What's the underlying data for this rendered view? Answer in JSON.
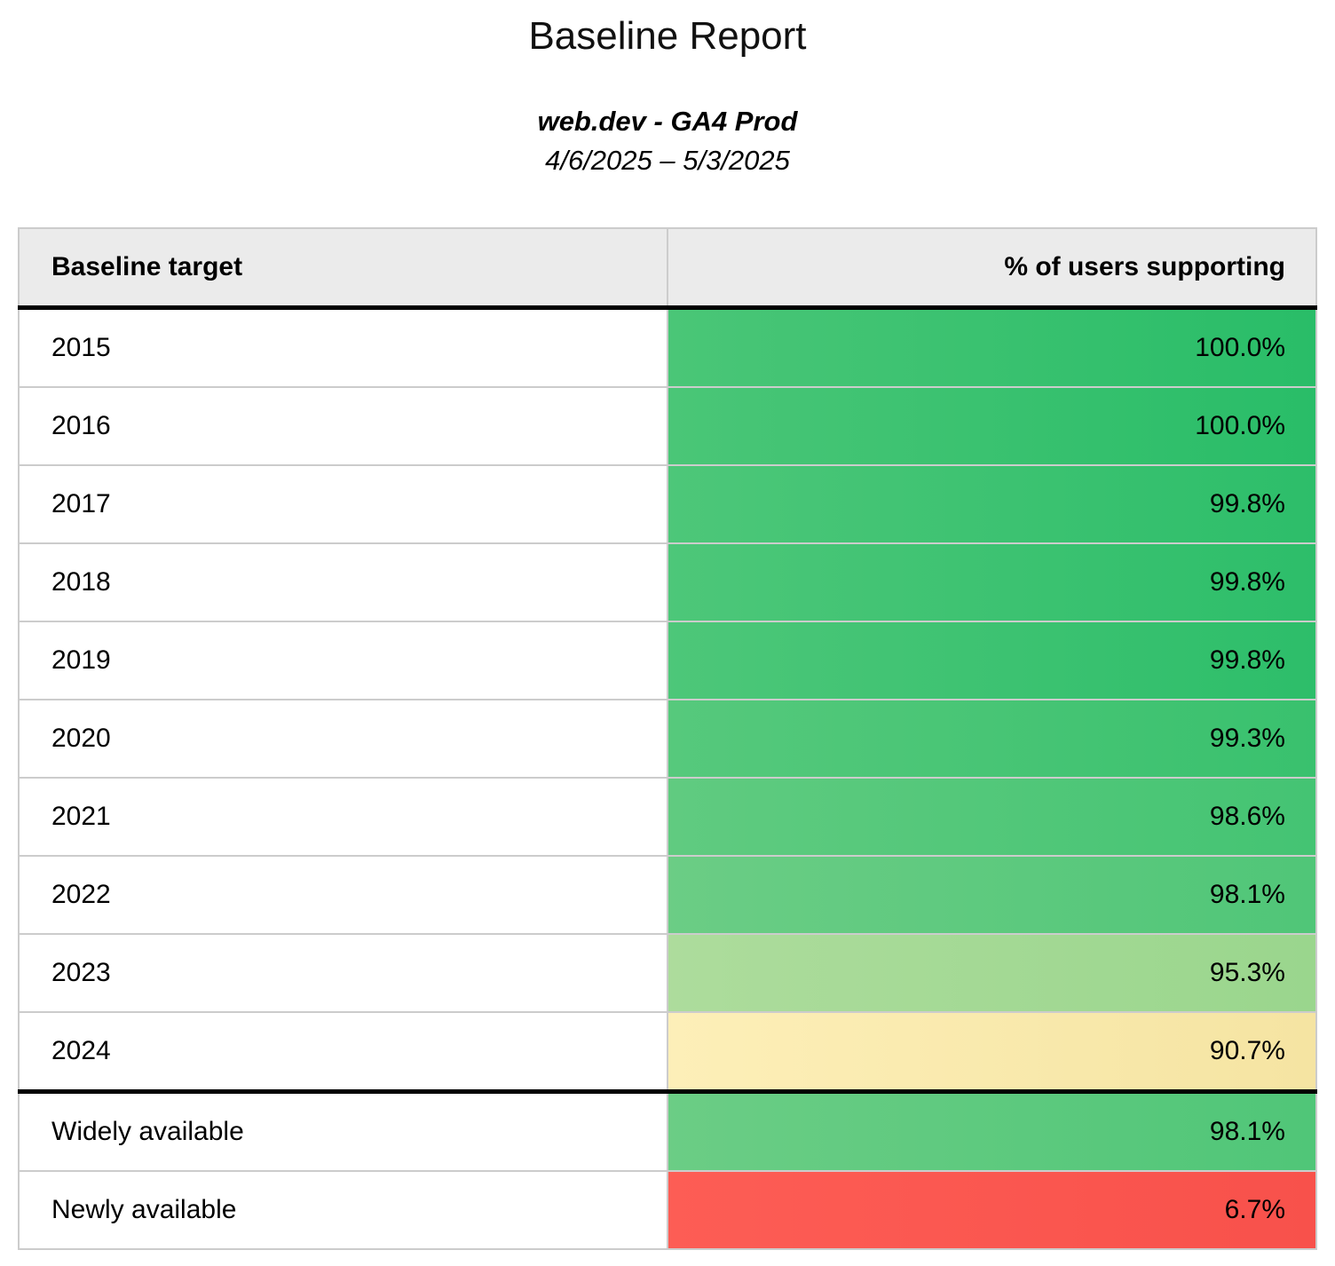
{
  "page": {
    "title": "Baseline Report",
    "subtitle": "web.dev - GA4 Prod",
    "date_range": "4/6/2025 – 5/3/2025"
  },
  "table": {
    "columns": [
      {
        "label": "Baseline target"
      },
      {
        "label": "% of users supporting"
      }
    ],
    "rows": [
      {
        "label": "2015",
        "value": "100.0%",
        "section": "years",
        "bg_left": "#4ac677",
        "bg_right": "#29bd68"
      },
      {
        "label": "2016",
        "value": "100.0%",
        "section": "years",
        "bg_left": "#4ac677",
        "bg_right": "#29bd68"
      },
      {
        "label": "2017",
        "value": "99.8%",
        "section": "years",
        "bg_left": "#4dc779",
        "bg_right": "#2dbe6a"
      },
      {
        "label": "2018",
        "value": "99.8%",
        "section": "years",
        "bg_left": "#4dc779",
        "bg_right": "#2dbe6a"
      },
      {
        "label": "2019",
        "value": "99.8%",
        "section": "years",
        "bg_left": "#4dc779",
        "bg_right": "#2dbe6a"
      },
      {
        "label": "2020",
        "value": "99.3%",
        "section": "years",
        "bg_left": "#56c97c",
        "bg_right": "#39c16e"
      },
      {
        "label": "2021",
        "value": "98.6%",
        "section": "years",
        "bg_left": "#60cb80",
        "bg_right": "#44c473"
      },
      {
        "label": "2022",
        "value": "98.1%",
        "section": "years",
        "bg_left": "#6bcd85",
        "bg_right": "#50c678"
      },
      {
        "label": "2023",
        "value": "95.3%",
        "section": "years",
        "bg_left": "#addc9c",
        "bg_right": "#9ad68d"
      },
      {
        "label": "2024",
        "value": "90.7%",
        "section": "years",
        "bg_left": "#fdefb8",
        "bg_right": "#f5e4a2"
      },
      {
        "label": "Widely available",
        "value": "98.1%",
        "section": "summary",
        "bg_left": "#6bcd85",
        "bg_right": "#50c678"
      },
      {
        "label": "Newly available",
        "value": "6.7%",
        "section": "summary",
        "bg_left": "#fd5d55",
        "bg_right": "#f8514b"
      }
    ]
  },
  "colors": {
    "header_bg": "#ebebeb",
    "row_border": "#cccccc",
    "section_rule": "#000000",
    "text": "#000000"
  },
  "chart_data": {
    "type": "table",
    "title": "Baseline Report",
    "subtitle": "web.dev - GA4 Prod",
    "date_range": "4/6/2025 – 5/3/2025",
    "columns": [
      "Baseline target",
      "% of users supporting"
    ],
    "rows": [
      [
        "2015",
        100.0
      ],
      [
        "2016",
        100.0
      ],
      [
        "2017",
        99.8
      ],
      [
        "2018",
        99.8
      ],
      [
        "2019",
        99.8
      ],
      [
        "2020",
        99.3
      ],
      [
        "2021",
        98.6
      ],
      [
        "2022",
        98.1
      ],
      [
        "2023",
        95.3
      ],
      [
        "2024",
        90.7
      ],
      [
        "Widely available",
        98.1
      ],
      [
        "Newly available",
        6.7
      ]
    ],
    "value_unit": "%",
    "layout_hints": {
      "value_column_align": "right",
      "heatmap": "value cells colored on red-yellow-green scale by percentage",
      "thick_rules": [
        "below header",
        "above 'Widely available' row"
      ]
    }
  }
}
